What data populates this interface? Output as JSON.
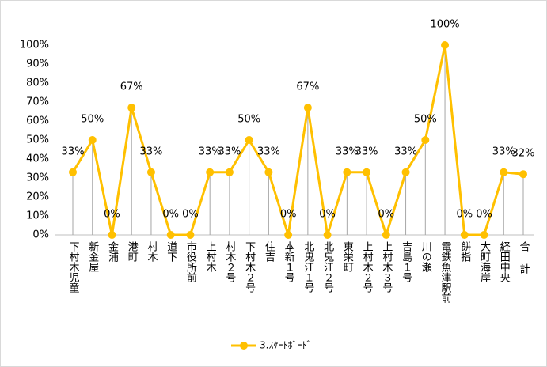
{
  "chart_data": {
    "type": "line",
    "categories": [
      "下村木児童",
      "新金屋",
      "金浦",
      "港町",
      "村木",
      "道下",
      "市役所前",
      "上村木",
      "村木２号",
      "下村木２号",
      "住吉",
      "本新１号",
      "北鬼江１号",
      "北鬼江２号",
      "東栄町",
      "上村木２号",
      "上村木３号",
      "吉島１号",
      "川の瀬",
      "電鉄魚津駅前",
      "餅指",
      "大町海岸",
      "経田中央",
      "合 計"
    ],
    "series": [
      {
        "name": "3.ｽｹｰﾄﾎﾞｰﾄﾞ",
        "color": "#FFC000",
        "values": [
          33,
          50,
          0,
          67,
          33,
          0,
          0,
          33,
          33,
          50,
          33,
          0,
          67,
          0,
          33,
          33,
          0,
          33,
          50,
          100,
          0,
          0,
          33,
          32
        ],
        "value_labels": [
          "33%",
          "50%",
          "0%",
          "67%",
          "33%",
          "0%",
          "0%",
          "33%",
          "33%",
          "50%",
          "33%",
          "0%",
          "67%",
          "0%",
          "33%",
          "33%",
          "0%",
          "33%",
          "50%",
          "100%",
          "0%",
          "0%",
          "33%",
          "32%"
        ]
      }
    ],
    "ylim": [
      0,
      100
    ],
    "yticks": [
      {
        "value": 0,
        "label": "0%"
      },
      {
        "value": 10,
        "label": "10%"
      },
      {
        "value": 20,
        "label": "20%"
      },
      {
        "value": 30,
        "label": "30%"
      },
      {
        "value": 40,
        "label": "40%"
      },
      {
        "value": 50,
        "label": "50%"
      },
      {
        "value": 60,
        "label": "60%"
      },
      {
        "value": 70,
        "label": "70%"
      },
      {
        "value": 80,
        "label": "80%"
      },
      {
        "value": 90,
        "label": "90%"
      },
      {
        "value": 100,
        "label": "100%"
      }
    ],
    "grid": false,
    "legend": "bottom"
  }
}
